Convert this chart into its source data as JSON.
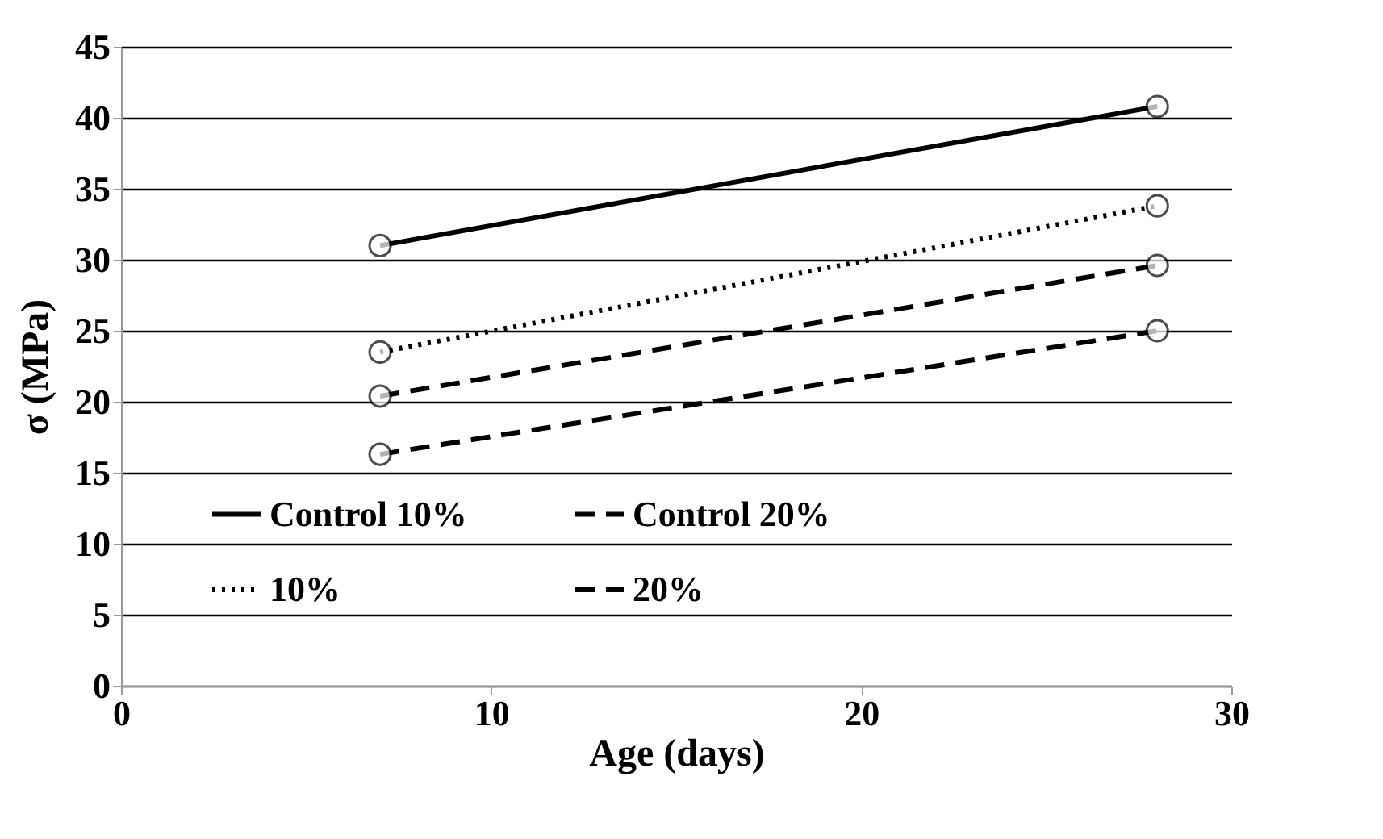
{
  "chart_data": {
    "type": "line",
    "xlabel": "Age (days)",
    "ylabel": "σ (MPa)",
    "x": [
      7,
      28
    ],
    "series": [
      {
        "name": "Control 10%",
        "color": "#000000",
        "values": [
          31,
          40.8
        ],
        "line_style": "solid"
      },
      {
        "name": "10%",
        "color": "#000000",
        "values": [
          23.5,
          33.8
        ],
        "line_style": "dotted"
      },
      {
        "name": "Control 20%",
        "color": "#000000",
        "values": [
          20.4,
          29.6
        ],
        "line_style": "dashed"
      },
      {
        "name": "20%",
        "color": "#000000",
        "values": [
          16.3,
          25
        ],
        "line_style": "dashed"
      }
    ],
    "xlim": [
      0,
      30
    ],
    "xticks": [
      0,
      10,
      20,
      30
    ],
    "ylim": [
      0,
      45
    ],
    "yticks": [
      0,
      5,
      10,
      15,
      20,
      25,
      30,
      35,
      40,
      45
    ],
    "grid": "y",
    "legend": "bottom",
    "marker": "circle"
  }
}
